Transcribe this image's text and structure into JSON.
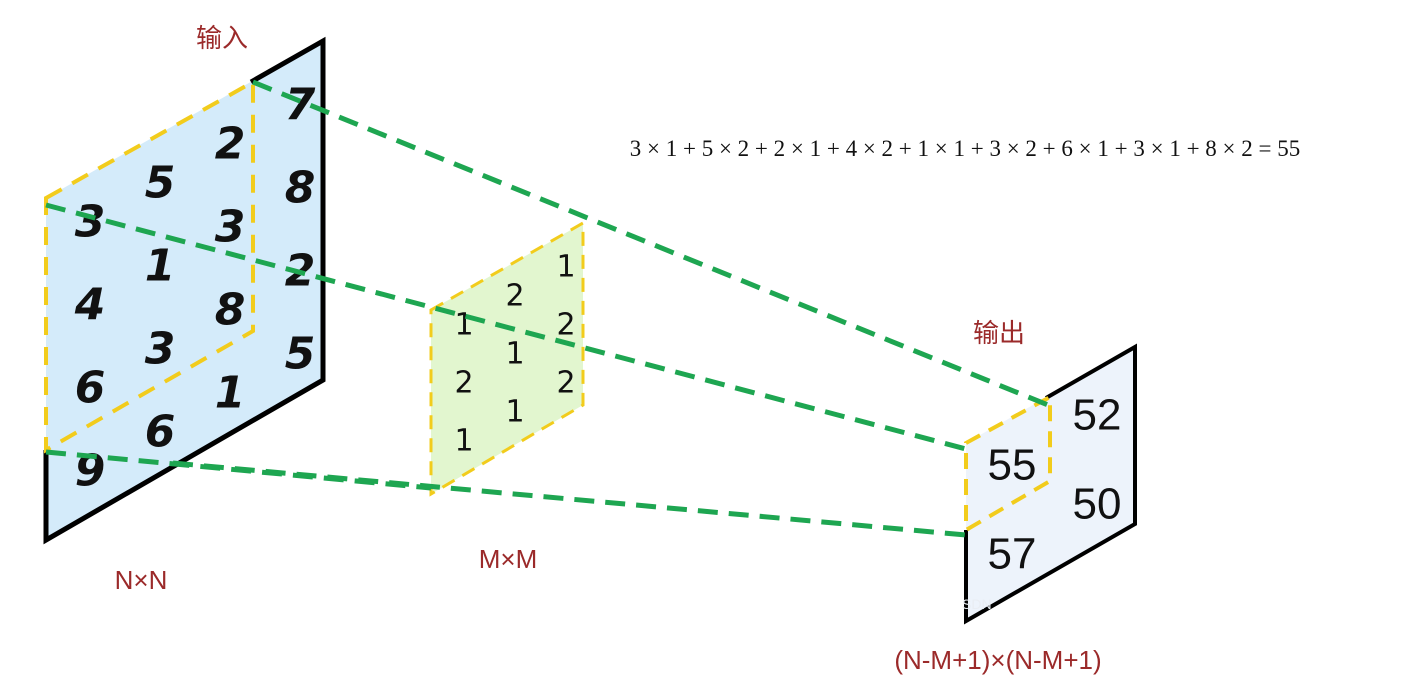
{
  "labels": {
    "input": "输入",
    "output": "输出",
    "input_size": "N×N",
    "kernel_size": "M×M",
    "output_size": "(N-M+1)×(N-M+1)"
  },
  "formula": "3 × 1 + 5 × 2 + 2 × 1 + 4 × 2 + 1 × 1 + 3 × 2 + 6 × 1 + 3 × 1 + 8 × 2 = 55",
  "input_matrix": [
    [
      "3",
      "5",
      "2",
      "7"
    ],
    [
      "4",
      "1",
      "3",
      "8"
    ],
    [
      "6",
      "3",
      "8",
      "2"
    ],
    [
      "9",
      "6",
      "1",
      "5"
    ]
  ],
  "kernel_matrix": [
    [
      "1",
      "2",
      "1"
    ],
    [
      "2",
      "1",
      "2"
    ],
    [
      "1",
      "1",
      "2"
    ]
  ],
  "output_matrix": [
    [
      "55",
      "52"
    ],
    [
      "57",
      "50"
    ]
  ],
  "watermark": "SDN",
  "colors": {
    "input_fill": "#d4ebfa",
    "kernel_fill": "#e2f6cf",
    "output_fill": "#edf3fb",
    "frame": "#000000",
    "window_dash": "#f2cc1c",
    "link_dash": "#1ea651",
    "label": "#9b2a2a"
  }
}
